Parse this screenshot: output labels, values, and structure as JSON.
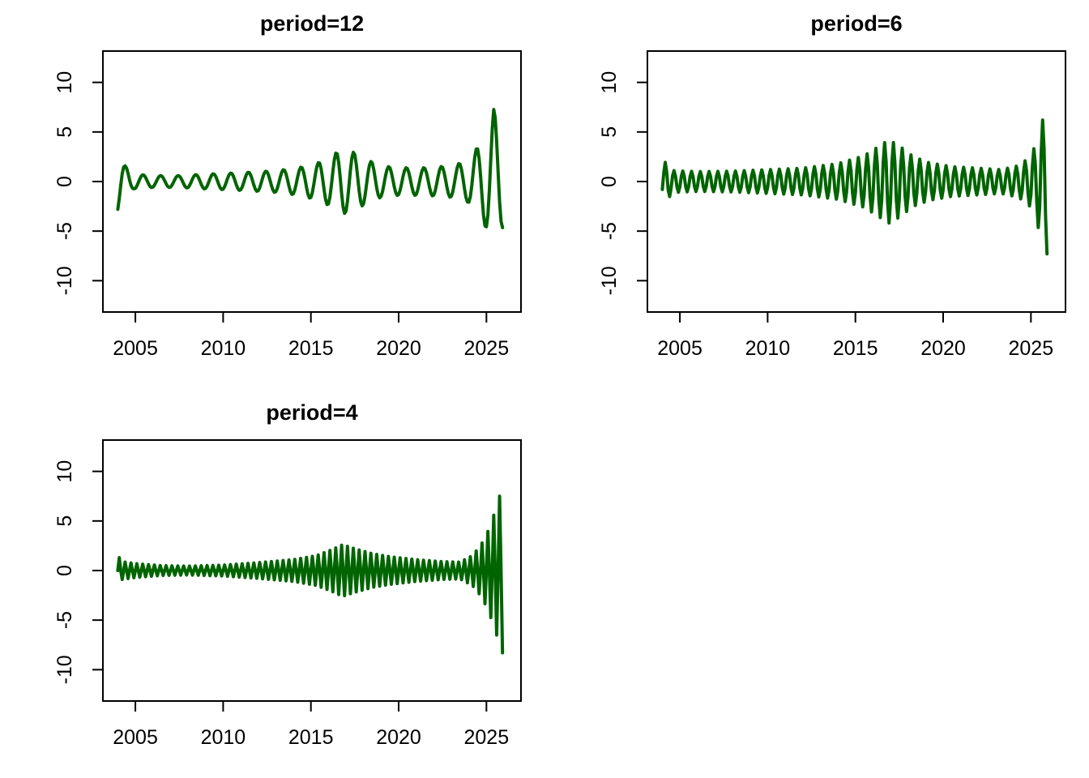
{
  "figure": {
    "background": "#ffffff",
    "axis_color": "#000000",
    "text_color": "#000000"
  },
  "chart_data": [
    {
      "type": "line",
      "title": "period=12",
      "xlabel": "",
      "ylabel": "",
      "line_color": "#006400",
      "x_ticks": [
        2005,
        2010,
        2015,
        2020,
        2025
      ],
      "y_ticks": [
        -10,
        -5,
        0,
        5,
        10
      ],
      "xlim": [
        2003.15,
        2026.97
      ],
      "ylim": [
        -13.16,
        13.16
      ],
      "grid": false,
      "legend": false,
      "x_start": 2004.0,
      "n_months": 264,
      "period_months": 12,
      "cycles_per_year": 1,
      "phase_rad": -1.2,
      "amplitude_envelope": [
        [
          2004.0,
          3.0
        ],
        [
          2004.417,
          1.6
        ],
        [
          2004.9,
          0.75
        ],
        [
          2006.0,
          0.6
        ],
        [
          2007.5,
          0.6
        ],
        [
          2009.0,
          0.75
        ],
        [
          2011.0,
          0.9
        ],
        [
          2013.0,
          1.1
        ],
        [
          2014.3,
          1.4
        ],
        [
          2015.4,
          1.9
        ],
        [
          2016.1,
          2.5
        ],
        [
          2016.75,
          3.3
        ],
        [
          2017.3,
          3.1
        ],
        [
          2018.2,
          2.2
        ],
        [
          2019.0,
          1.6
        ],
        [
          2020.0,
          1.4
        ],
        [
          2021.5,
          1.4
        ],
        [
          2023.0,
          1.6
        ],
        [
          2023.95,
          2.1
        ],
        [
          2024.45,
          3.4
        ],
        [
          2024.95,
          4.6
        ],
        [
          2025.417,
          7.35
        ],
        [
          2025.917,
          4.7
        ]
      ]
    },
    {
      "type": "line",
      "title": "period=6",
      "xlabel": "",
      "ylabel": "",
      "line_color": "#006400",
      "x_ticks": [
        2005,
        2010,
        2015,
        2020,
        2025
      ],
      "y_ticks": [
        -10,
        -5,
        0,
        5,
        10
      ],
      "xlim": [
        2003.15,
        2026.97
      ],
      "ylim": [
        -13.16,
        13.16
      ],
      "grid": false,
      "legend": false,
      "x_start": 2004.0,
      "n_months": 264,
      "period_months": 6,
      "cycles_per_year": 2,
      "phase_rad": -0.524,
      "amplitude_envelope": [
        [
          2004.0,
          1.6
        ],
        [
          2004.2,
          2.0
        ],
        [
          2004.6,
          1.1
        ],
        [
          2006.0,
          1.0
        ],
        [
          2008.0,
          1.05
        ],
        [
          2010.0,
          1.2
        ],
        [
          2012.0,
          1.35
        ],
        [
          2014.0,
          1.8
        ],
        [
          2015.5,
          2.6
        ],
        [
          2016.3,
          3.5
        ],
        [
          2016.9,
          4.2
        ],
        [
          2017.5,
          3.6
        ],
        [
          2018.3,
          2.5
        ],
        [
          2019.2,
          1.9
        ],
        [
          2020.5,
          1.5
        ],
        [
          2022.0,
          1.35
        ],
        [
          2023.3,
          1.2
        ],
        [
          2024.3,
          1.6
        ],
        [
          2024.9,
          2.4
        ],
        [
          2025.25,
          3.6
        ],
        [
          2025.667,
          6.2
        ],
        [
          2025.917,
          7.3
        ]
      ]
    },
    {
      "type": "line",
      "title": "period=4",
      "xlabel": "",
      "ylabel": "",
      "line_color": "#006400",
      "x_ticks": [
        2005,
        2010,
        2015,
        2020,
        2025
      ],
      "y_ticks": [
        -10,
        -5,
        0,
        5,
        10
      ],
      "xlim": [
        2003.15,
        2026.97
      ],
      "ylim": [
        -13.16,
        13.16
      ],
      "grid": false,
      "legend": false,
      "x_start": 2004.0,
      "n_months": 264,
      "period_months": 4,
      "cycles_per_year": 3,
      "phase_rad": 0.0,
      "amplitude_envelope": [
        [
          2004.0,
          1.5
        ],
        [
          2004.25,
          0.9
        ],
        [
          2005.0,
          0.7
        ],
        [
          2006.5,
          0.5
        ],
        [
          2008.0,
          0.45
        ],
        [
          2010.0,
          0.55
        ],
        [
          2012.0,
          0.8
        ],
        [
          2014.0,
          1.1
        ],
        [
          2015.3,
          1.5
        ],
        [
          2016.2,
          2.1
        ],
        [
          2016.8,
          2.6
        ],
        [
          2017.5,
          2.2
        ],
        [
          2018.5,
          1.7
        ],
        [
          2019.5,
          1.4
        ],
        [
          2021.0,
          1.1
        ],
        [
          2022.5,
          0.9
        ],
        [
          2023.5,
          0.85
        ],
        [
          2024.2,
          1.5
        ],
        [
          2024.7,
          2.6
        ],
        [
          2025.1,
          4.0
        ],
        [
          2025.5,
          6.0
        ],
        [
          2025.75,
          7.5
        ],
        [
          2025.917,
          8.3
        ]
      ]
    }
  ]
}
